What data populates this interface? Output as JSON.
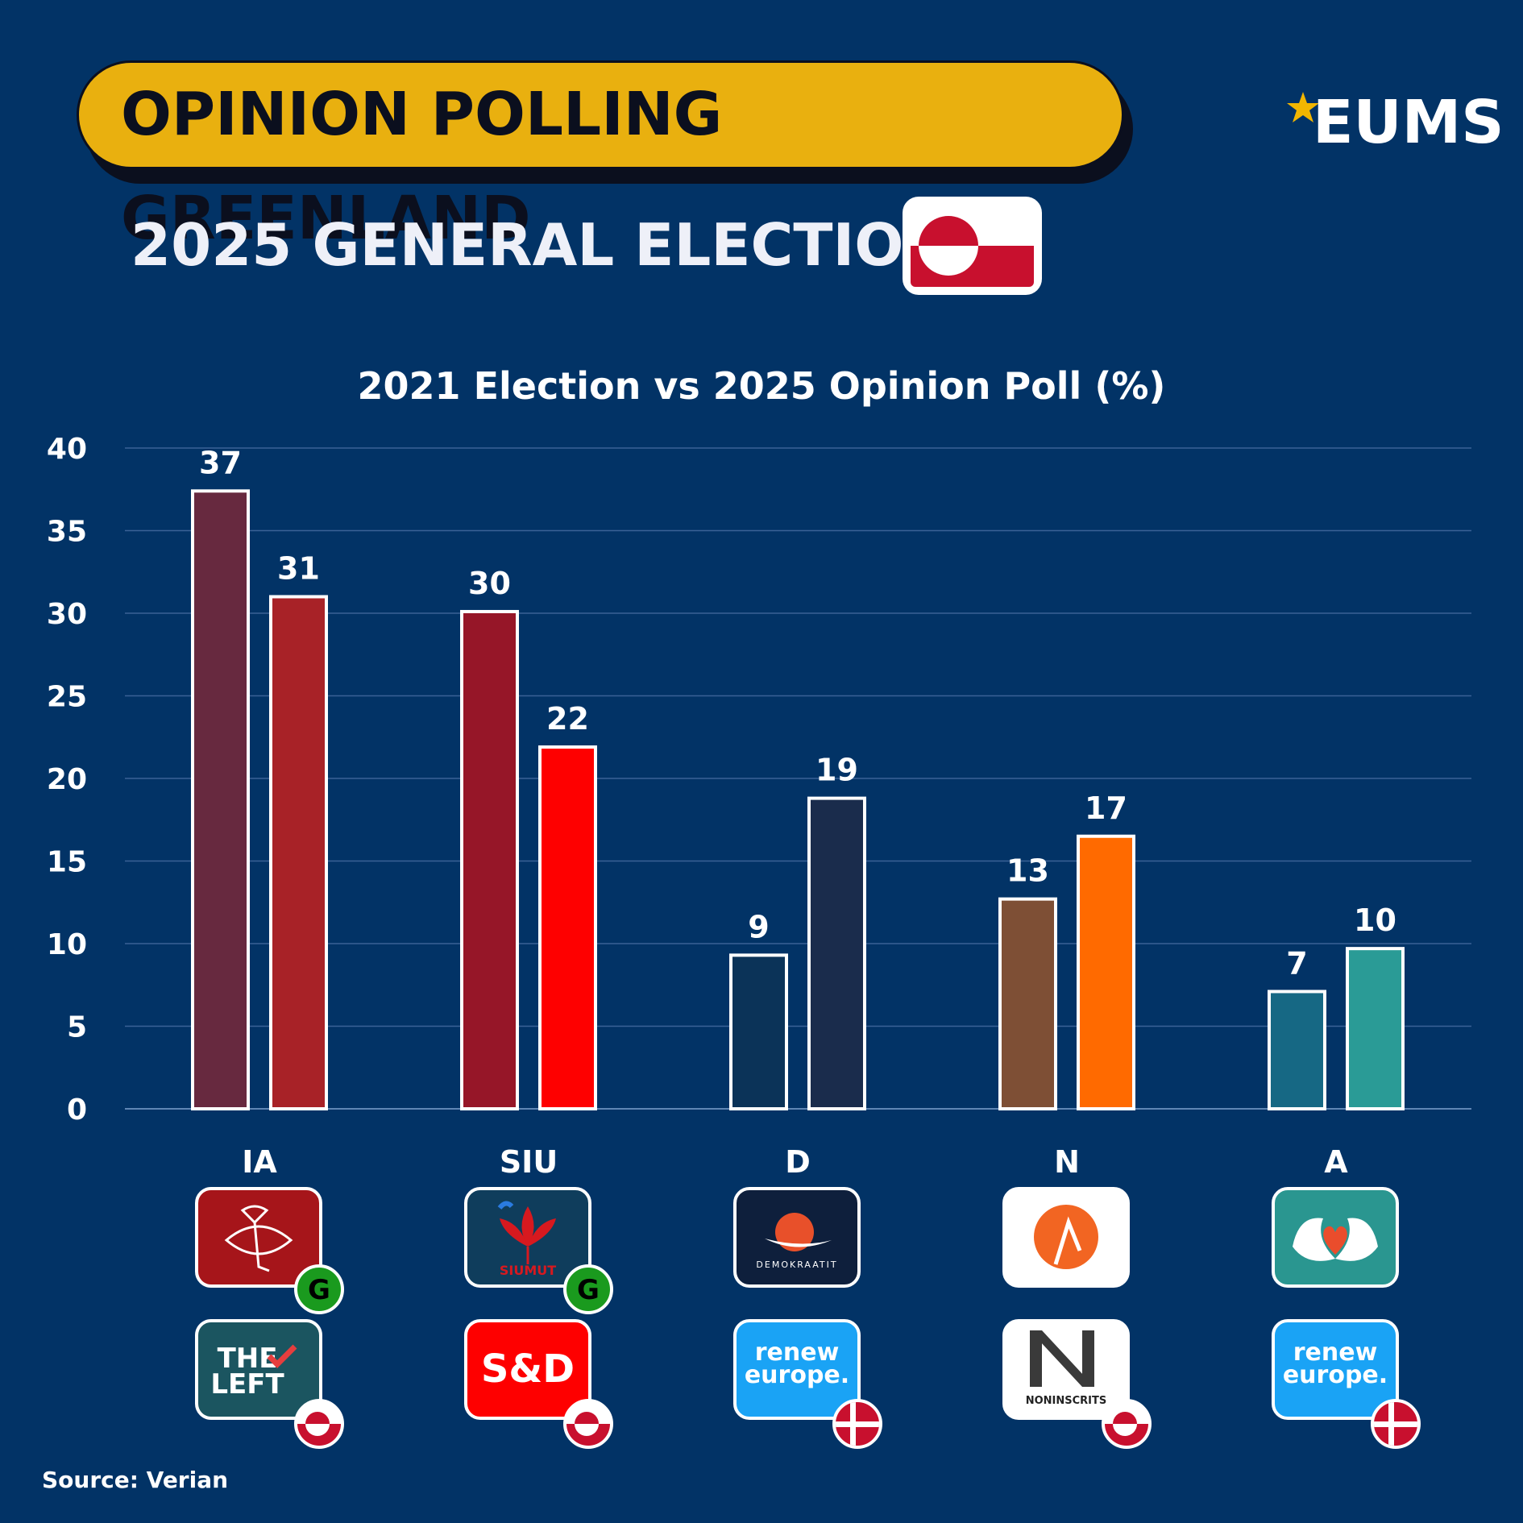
{
  "header": {
    "title": "OPINION POLLING GREENLAND",
    "subtitle": "2025 GENERAL ELECTION",
    "logo_text": "EUMS"
  },
  "chart_data": {
    "type": "bar",
    "title": "2021 Election vs 2025 Opinion Poll (%)",
    "categories": [
      "IA",
      "SIU",
      "D",
      "N",
      "A"
    ],
    "ylim": [
      0,
      40
    ],
    "yticks": [
      0,
      5,
      10,
      15,
      20,
      25,
      30,
      35,
      40
    ],
    "grid": true,
    "series": [
      {
        "values": [
          37.4,
          30.1,
          9.3,
          12.7,
          7.1
        ],
        "labels": [
          "37",
          "30",
          "9",
          "13",
          "7"
        ],
        "colors": [
          "#67293f",
          "#961628",
          "#0b3358",
          "#7e4f35",
          "#166884"
        ]
      },
      {
        "values": [
          31.0,
          21.9,
          18.8,
          16.5,
          9.7
        ],
        "labels": [
          "31",
          "22",
          "19",
          "17",
          "10"
        ],
        "colors": [
          "#a82227",
          "#fe0000",
          "#1a2c4c",
          "#ff6a00",
          "#2a9b96"
        ]
      }
    ]
  },
  "logos": [
    {
      "party": "IA",
      "national_badge": "G",
      "eu_group_line1": "THE",
      "eu_group_line2": "LEFT",
      "eu_badge": "greenland-flag"
    },
    {
      "party": "SIU",
      "party_logo_text": "SIUMUT",
      "national_badge": "G",
      "eu_group_text": "S&D",
      "eu_badge": "greenland-flag"
    },
    {
      "party": "D",
      "party_logo_text": "DEMOKRAATIT",
      "eu_group_line1": "renew",
      "eu_group_line2": "europe.",
      "eu_badge": "denmark-flag"
    },
    {
      "party": "N",
      "eu_group_text": "NONINSCRITS",
      "eu_badge": "greenland-flag"
    },
    {
      "party": "A",
      "eu_group_line1": "renew",
      "eu_group_line2": "europe.",
      "eu_badge": "denmark-flag"
    }
  ],
  "colors": {
    "background": "#023366",
    "banner": "#e9b00f",
    "accent_star": "#f2b600"
  },
  "footer": {
    "source": "Source: Verian"
  }
}
